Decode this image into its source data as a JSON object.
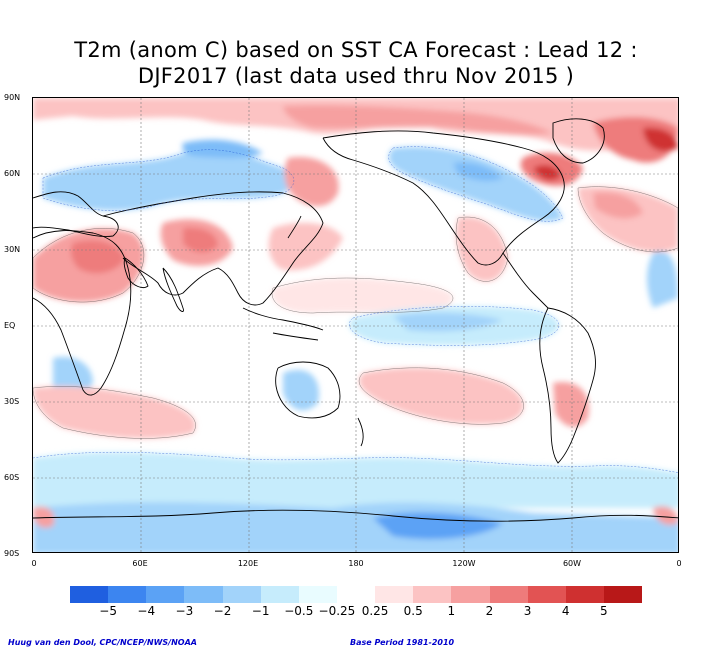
{
  "title_line1": "T2m (anom C) based on SST CA Forecast : Lead 12 :",
  "title_line2": "DJF2017 (last data used thru Nov 2015 )",
  "axes": {
    "y_ticks": [
      "90N",
      "60N",
      "30N",
      "EQ",
      "30S",
      "60S",
      "90S"
    ],
    "x_ticks": [
      "0",
      "60E",
      "120E",
      "180",
      "120W",
      "60W",
      "0"
    ]
  },
  "legend": {
    "colors": [
      "#1f5fe0",
      "#3c85f0",
      "#5ba2f5",
      "#7dbcf8",
      "#a2d3fa",
      "#c6ecfc",
      "#e9fcff",
      "#ffffff",
      "#ffe6e6",
      "#fcc3c3",
      "#f6a0a0",
      "#ee7b7b",
      "#e25353",
      "#cf3030",
      "#b81818"
    ],
    "labels": [
      "−5",
      "−4",
      "−3",
      "−2",
      "−1",
      "−0.5",
      "−0.25",
      "0.25",
      "0.5",
      "1",
      "2",
      "3",
      "4",
      "5"
    ]
  },
  "credits": {
    "left": "Huug van den Dool, CPC/NCEP/NWS/NOAA",
    "right": "Base Period 1981-2010"
  }
}
